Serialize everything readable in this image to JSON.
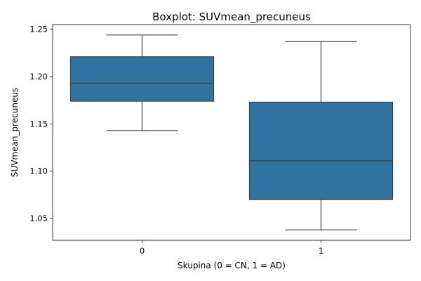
{
  "chart_data": {
    "type": "box",
    "title": "Boxplot: SUVmean_precuneus",
    "xlabel": "Skupina (0 = CN, 1 = AD)",
    "ylabel": "SUVmean_precuneus",
    "categories": [
      "0",
      "1"
    ],
    "ylim": [
      1.027,
      1.255
    ],
    "yticks": [
      1.05,
      1.1,
      1.15,
      1.2,
      1.25
    ],
    "ytick_labels": [
      "1.05",
      "1.10",
      "1.15",
      "1.20",
      "1.25"
    ],
    "grid": false,
    "box_color": "#3274a1",
    "line_color": "#3f3f3f",
    "boxes": [
      {
        "category": "0",
        "whisker_low": 1.143,
        "q1": 1.174,
        "median": 1.193,
        "q3": 1.221,
        "whisker_high": 1.244
      },
      {
        "category": "1",
        "whisker_low": 1.038,
        "q1": 1.07,
        "median": 1.111,
        "q3": 1.173,
        "whisker_high": 1.237
      }
    ]
  }
}
